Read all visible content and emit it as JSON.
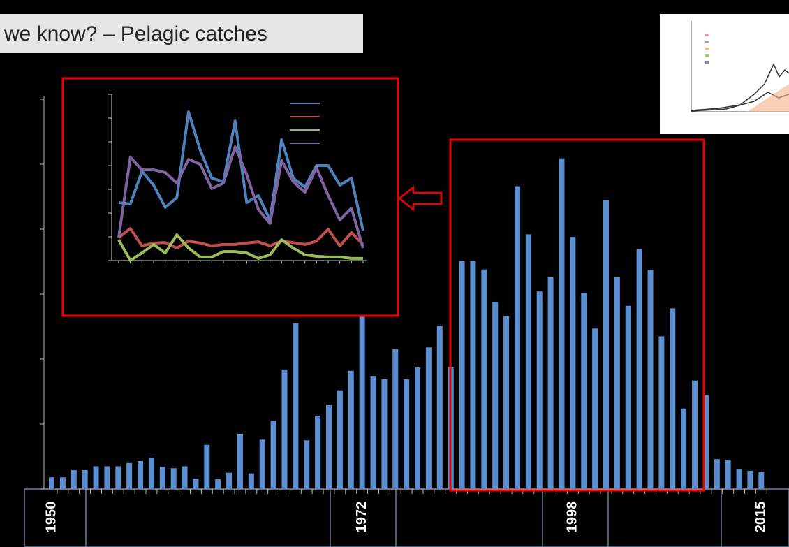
{
  "slide": {
    "title": "we know? – Pelagic catches"
  },
  "chart_data": [
    {
      "type": "bar",
      "color": "#5b8fd1",
      "categories": [
        "1950",
        null,
        null,
        null,
        null,
        null,
        null,
        null,
        null,
        null,
        null,
        null,
        null,
        null,
        null,
        null,
        null,
        null,
        null,
        null,
        null,
        null,
        null,
        null,
        null,
        null,
        null,
        null,
        "1972",
        null,
        null,
        null,
        null,
        null,
        null,
        null,
        null,
        null,
        null,
        null,
        null,
        null,
        null,
        null,
        null,
        null,
        null,
        "1998",
        null,
        null,
        null,
        null,
        null,
        null,
        null,
        null,
        null,
        null,
        null,
        null,
        null,
        null,
        null,
        null,
        "2015"
      ],
      "values": [
        18,
        18,
        29,
        29,
        35,
        35,
        35,
        40,
        43,
        48,
        34,
        32,
        35,
        16,
        68,
        15,
        25,
        85,
        24,
        76,
        105,
        184,
        255,
        75,
        113,
        129,
        152,
        182,
        285,
        174,
        169,
        215,
        169,
        187,
        218,
        251,
        188,
        351,
        351,
        338,
        288,
        266,
        466,
        392,
        304,
        326,
        509,
        388,
        302,
        247,
        445,
        326,
        282,
        369,
        337,
        235,
        278,
        124,
        167,
        145,
        46,
        45,
        30,
        28,
        26
      ],
      "ylim": [
        0,
        600
      ],
      "yticks": [
        0,
        100,
        200,
        300,
        400,
        500,
        600
      ]
    },
    {
      "type": "line",
      "categories": [
        null,
        null,
        null,
        null,
        null,
        null,
        null,
        null,
        null,
        null,
        null,
        null,
        null,
        null,
        null,
        null,
        null,
        null,
        null,
        null,
        null,
        null
      ],
      "series": [
        {
          "color": "#4f81bd",
          "values": [
            2.44,
            2.38,
            3.76,
            3.18,
            2.24,
            2.65,
            6.26,
            4.65,
            3.47,
            3.32,
            5.88,
            2.44,
            2.74,
            1.71,
            5.09,
            3.47,
            3.09,
            4.0,
            4.0,
            3.18,
            3.47,
            1.26
          ]
        },
        {
          "color": "#c0504d",
          "values": [
            0.97,
            1.35,
            0.62,
            0.74,
            0.76,
            0.53,
            0.82,
            0.74,
            0.62,
            0.68,
            0.68,
            0.74,
            0.79,
            0.62,
            0.82,
            0.76,
            0.68,
            0.82,
            1.32,
            0.62,
            1.18,
            0.68
          ]
        },
        {
          "color": "#9bbb59",
          "values": [
            0.88,
            0,
            0.32,
            0.68,
            0.32,
            1.09,
            0.53,
            0.15,
            0.15,
            0.38,
            0.38,
            0.32,
            0.09,
            0.24,
            0.88,
            0.53,
            0.24,
            0.18,
            0.15,
            0.15,
            0.09,
            0.09
          ]
        },
        {
          "color": "#8064a2",
          "values": [
            0.97,
            4.35,
            3.82,
            3.82,
            3.71,
            3.26,
            4.26,
            4.06,
            3.03,
            3.26,
            4.79,
            3.62,
            2.15,
            1.56,
            4.21,
            3.32,
            2.88,
            3.91,
            2.74,
            1.71,
            2.21,
            0.53
          ]
        }
      ],
      "ylim": [
        0,
        7
      ],
      "yticks": [
        0,
        1,
        2,
        3,
        4,
        5,
        6,
        7
      ]
    }
  ]
}
